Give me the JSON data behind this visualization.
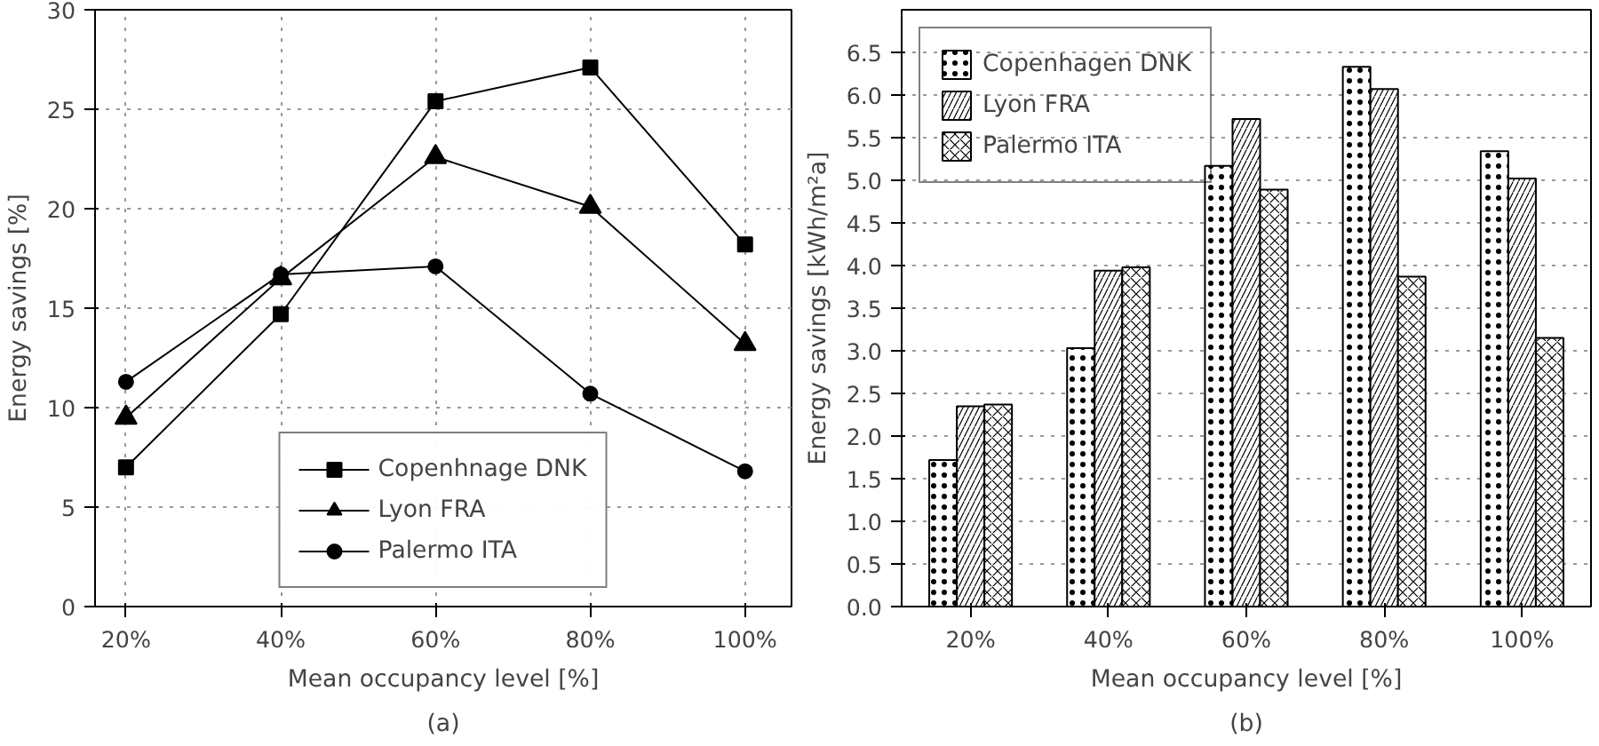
{
  "chart_data": [
    {
      "type": "line",
      "xlabel": "Mean occupancy level [%]",
      "ylabel": "Energy savings [%]",
      "annotations": [
        "(a)"
      ],
      "x": [
        20,
        40,
        60,
        80,
        100
      ],
      "series": [
        {
          "name": "Copenhnage DNK",
          "color": "#000000",
          "marker": "square",
          "values": [
            7.0,
            14.7,
            25.4,
            27.1,
            18.2
          ]
        },
        {
          "name": "Lyon FRA",
          "color": "#000000",
          "marker": "triangle",
          "values": [
            9.5,
            16.5,
            22.6,
            20.1,
            13.2
          ]
        },
        {
          "name": "Palermo ITA",
          "color": "#000000",
          "marker": "circle",
          "values": [
            11.3,
            16.7,
            17.1,
            10.7,
            6.8
          ]
        }
      ],
      "xlim": [
        16,
        106
      ],
      "xticks": [
        {
          "value": 20,
          "label": "20%"
        },
        {
          "value": 40,
          "label": "40%"
        },
        {
          "value": 60,
          "label": "60%"
        },
        {
          "value": 80,
          "label": "80%"
        },
        {
          "value": 100,
          "label": "100%"
        }
      ],
      "ylim": [
        0,
        30
      ],
      "yticks": [
        0,
        5,
        10,
        15,
        20,
        25,
        30
      ],
      "grid": true,
      "legend": "bottom",
      "line_style": "solid"
    },
    {
      "type": "bar",
      "xlabel": "Mean occupancy level [%]",
      "ylabel": "Energy savings [kWh/m²a]",
      "annotations": [
        "(b)"
      ],
      "categories": [
        "20%",
        "40%",
        "60%",
        "80%",
        "100%"
      ],
      "series": [
        {
          "name": "Copenhagen DNK",
          "color": "#ffffff",
          "values": [
            1.72,
            3.03,
            5.17,
            6.33,
            5.34
          ]
        },
        {
          "name": "Lyon FRA",
          "color": "#ffffff",
          "values": [
            2.35,
            3.94,
            5.72,
            6.07,
            5.02
          ]
        },
        {
          "name": "Palermo ITA",
          "color": "#ffffff",
          "values": [
            2.37,
            3.98,
            4.89,
            3.87,
            3.15
          ]
        }
      ],
      "ylim": [
        0,
        7.0
      ],
      "yticks": [
        {
          "value": 0,
          "label": "0.0"
        },
        0.5,
        {
          "value": 1,
          "label": "1.0"
        },
        1.5,
        {
          "value": 2,
          "label": "2.0"
        },
        2.5,
        {
          "value": 3,
          "label": "3.0"
        },
        3.5,
        {
          "value": 4,
          "label": "4.0"
        },
        4.5,
        {
          "value": 5,
          "label": "5.0"
        },
        5.5,
        {
          "value": 6,
          "label": "6.0"
        },
        6.5
      ],
      "grid": "y",
      "legend": "top left"
    }
  ]
}
